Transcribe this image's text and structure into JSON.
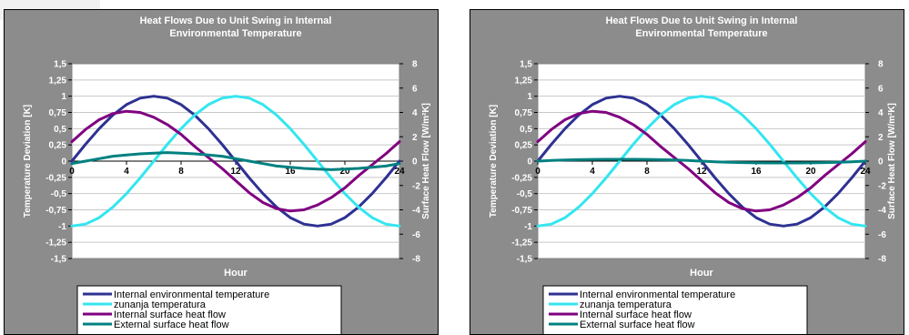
{
  "chart_data": [
    {
      "type": "line",
      "title": "Heat Flows Due to Unit Swing in Internal Environmental Temperature",
      "title_lines": [
        "Heat Flows Due to Unit Swing in Internal",
        "Environmental Temperature"
      ],
      "xlabel": "Hour",
      "ylabel": "Temperature Deviation [K]",
      "y2label": "Surface Heat Flow [W/m²K]",
      "xlim": [
        0,
        24
      ],
      "ylim": [
        -1.5,
        1.5
      ],
      "y2lim": [
        -8,
        8
      ],
      "x_ticks": [
        "0",
        "4",
        "8",
        "12",
        "16",
        "20",
        "24"
      ],
      "y_ticks": [
        "1,5",
        "1,25",
        "1",
        "0,75",
        "0,5",
        "0,25",
        "0",
        "-0,25",
        "-0,5",
        "-0,75",
        "-1",
        "-1,25",
        "-1,5"
      ],
      "y2_ticks": [
        "8",
        "6",
        "4",
        "2",
        "0",
        "-2",
        "-4",
        "-6",
        "-8"
      ],
      "grid": "horizontal",
      "legend_position": "bottom",
      "x": [
        0,
        1,
        2,
        3,
        4,
        5,
        6,
        7,
        8,
        9,
        10,
        11,
        12,
        13,
        14,
        15,
        16,
        17,
        18,
        19,
        20,
        21,
        22,
        23,
        24
      ],
      "series": [
        {
          "name": "Internal environmental temperature",
          "color": "#2e3192",
          "axis": "left",
          "values": [
            0,
            0.26,
            0.5,
            0.71,
            0.87,
            0.97,
            1,
            0.97,
            0.87,
            0.71,
            0.5,
            0.26,
            0,
            -0.26,
            -0.5,
            -0.71,
            -0.87,
            -0.97,
            -1,
            -0.97,
            -0.87,
            -0.71,
            -0.5,
            -0.26,
            0
          ]
        },
        {
          "name": "zunanja temperatura",
          "color": "#33e6f0",
          "axis": "left",
          "values": [
            -1,
            -0.97,
            -0.87,
            -0.71,
            -0.5,
            -0.26,
            0,
            0.26,
            0.5,
            0.71,
            0.87,
            0.97,
            1,
            0.97,
            0.87,
            0.71,
            0.5,
            0.26,
            0,
            -0.26,
            -0.5,
            -0.71,
            -0.87,
            -0.97,
            -1
          ]
        },
        {
          "name": "Internal surface heat flow",
          "color": "#800080",
          "axis": "right",
          "values": [
            1.6,
            2.6,
            3.4,
            3.9,
            4.1,
            4.0,
            3.6,
            3.0,
            2.2,
            1.2,
            0.3,
            -0.6,
            -1.6,
            -2.6,
            -3.4,
            -3.9,
            -4.1,
            -4.0,
            -3.6,
            -3.0,
            -2.2,
            -1.2,
            -0.3,
            0.6,
            1.6
          ]
        },
        {
          "name": "External surface heat flow",
          "color": "#008080",
          "axis": "right",
          "values": [
            -0.2,
            0,
            0.2,
            0.4,
            0.5,
            0.6,
            0.65,
            0.7,
            0.65,
            0.6,
            0.5,
            0.4,
            0.2,
            0,
            -0.2,
            -0.4,
            -0.5,
            -0.6,
            -0.65,
            -0.7,
            -0.65,
            -0.6,
            -0.5,
            -0.4,
            -0.2
          ]
        }
      ]
    },
    {
      "type": "line",
      "title": "Heat Flows Due to Unit Swing in Internal Environmental Temperature",
      "title_lines": [
        "Heat Flows Due to Unit Swing in Internal",
        "Environmental Temperature"
      ],
      "xlabel": "Hour",
      "ylabel": "Temperature Deviation [K]",
      "y2label": "Surface Heat Flow [W/m²K]",
      "xlim": [
        0,
        24
      ],
      "ylim": [
        -1.5,
        1.5
      ],
      "y2lim": [
        -8,
        8
      ],
      "x_ticks": [
        "0",
        "4",
        "8",
        "12",
        "16",
        "20",
        "24"
      ],
      "y_ticks": [
        "1,5",
        "1,25",
        "1",
        "0,75",
        "0,5",
        "0,25",
        "0",
        "-0,25",
        "-0,5",
        "-0,75",
        "-1",
        "-1,25",
        "-1,5"
      ],
      "y2_ticks": [
        "8",
        "6",
        "4",
        "2",
        "0",
        "-2",
        "-4",
        "-6",
        "-8"
      ],
      "grid": "horizontal",
      "legend_position": "bottom",
      "x": [
        0,
        1,
        2,
        3,
        4,
        5,
        6,
        7,
        8,
        9,
        10,
        11,
        12,
        13,
        14,
        15,
        16,
        17,
        18,
        19,
        20,
        21,
        22,
        23,
        24
      ],
      "series": [
        {
          "name": "Internal environmental temperature",
          "color": "#2e3192",
          "axis": "left",
          "values": [
            0,
            0.26,
            0.5,
            0.71,
            0.87,
            0.97,
            1,
            0.97,
            0.87,
            0.71,
            0.5,
            0.26,
            0,
            -0.26,
            -0.5,
            -0.71,
            -0.87,
            -0.97,
            -1,
            -0.97,
            -0.87,
            -0.71,
            -0.5,
            -0.26,
            0
          ]
        },
        {
          "name": "zunanja temperatura",
          "color": "#33e6f0",
          "axis": "left",
          "values": [
            -1,
            -0.97,
            -0.87,
            -0.71,
            -0.5,
            -0.26,
            0,
            0.26,
            0.5,
            0.71,
            0.87,
            0.97,
            1,
            0.97,
            0.87,
            0.71,
            0.5,
            0.26,
            0,
            -0.26,
            -0.5,
            -0.71,
            -0.87,
            -0.97,
            -1
          ]
        },
        {
          "name": "Internal surface heat flow",
          "color": "#800080",
          "axis": "right",
          "values": [
            1.6,
            2.6,
            3.4,
            3.9,
            4.1,
            4.0,
            3.6,
            3.0,
            2.2,
            1.2,
            0.3,
            -0.6,
            -1.6,
            -2.6,
            -3.4,
            -3.9,
            -4.1,
            -4.0,
            -3.6,
            -3.0,
            -2.2,
            -1.2,
            -0.3,
            0.6,
            1.6
          ]
        },
        {
          "name": "External surface heat flow",
          "color": "#008080",
          "axis": "right",
          "values": [
            0,
            0.05,
            0.1,
            0.12,
            0.14,
            0.15,
            0.15,
            0.15,
            0.14,
            0.12,
            0.1,
            0.05,
            0,
            -0.05,
            -0.1,
            -0.12,
            -0.14,
            -0.15,
            -0.15,
            -0.15,
            -0.14,
            -0.12,
            -0.1,
            -0.05,
            0
          ]
        }
      ]
    }
  ]
}
